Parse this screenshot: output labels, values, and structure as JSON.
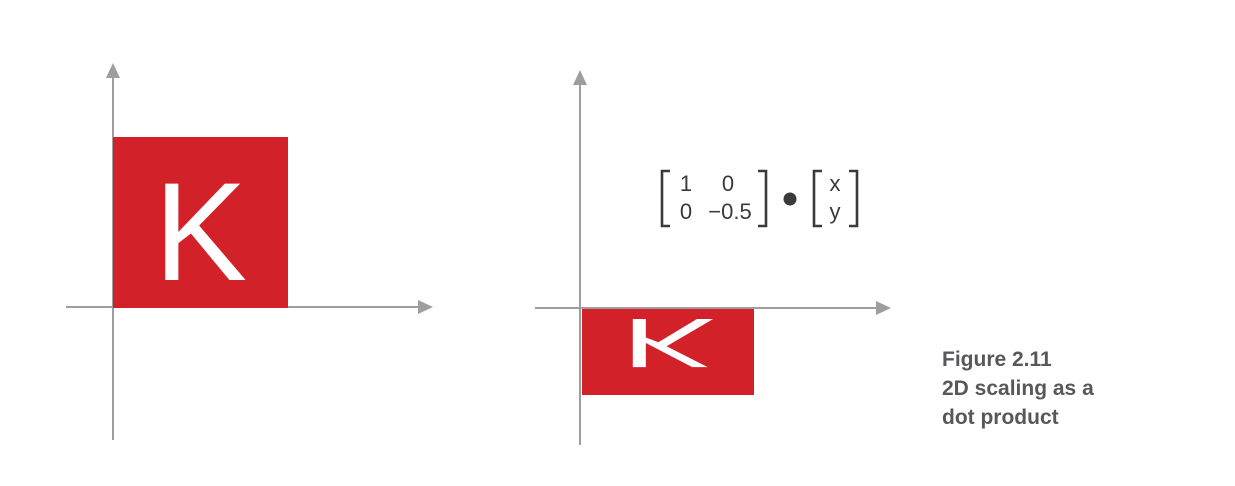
{
  "left_panel": {
    "letter": "K"
  },
  "right_panel": {
    "letter": "K",
    "matrix": [
      [
        "1",
        "0"
      ],
      [
        "0",
        "−0.5"
      ]
    ],
    "operator": "dot",
    "vector": [
      "x",
      "y"
    ]
  },
  "caption": {
    "label": "Figure 2.11",
    "line1": "2D scaling as a",
    "line2": "dot product"
  },
  "colors": {
    "accent": "#d22128",
    "axis": "#9e9e9e",
    "text": "#3a3a3a",
    "caption": "#58585a"
  }
}
